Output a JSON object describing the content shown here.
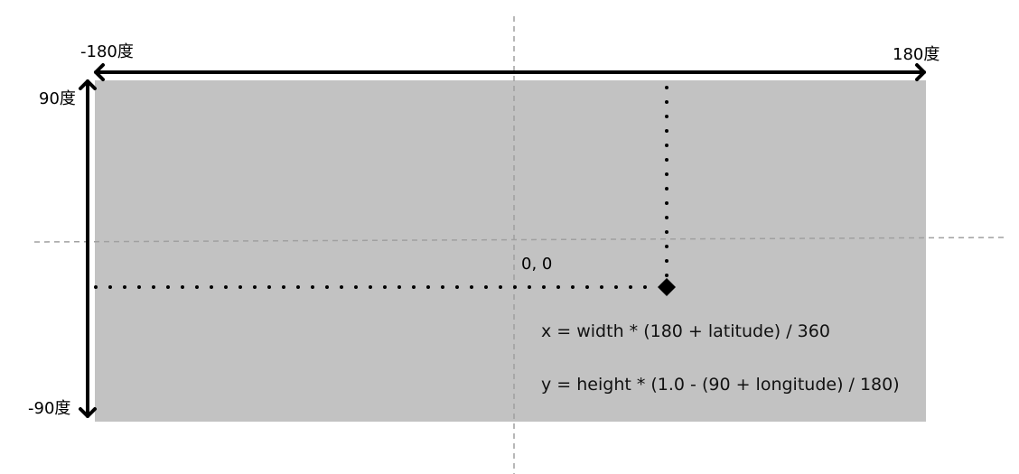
{
  "labels": {
    "lon_min": "-180度",
    "lon_max": "180度",
    "lat_max": "90度",
    "lat_min": "-90度",
    "origin": "0, 0"
  },
  "formulas": {
    "x": "x = width * (180 + latitude) / 360",
    "y": "y = height * (1.0 - (90 + longitude) / 180)"
  },
  "colors": {
    "map_fill": "#c2c2c2",
    "axis": "#000000",
    "guide": "#a0a0a0"
  }
}
